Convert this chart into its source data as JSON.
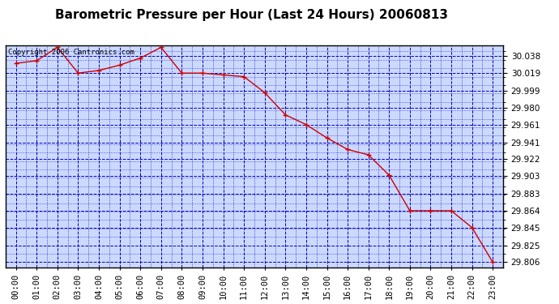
{
  "title": "Barometric Pressure per Hour (Last 24 Hours) 20060813",
  "copyright_text": "Copyright 2006 Cantronics.com",
  "x_labels": [
    "00:00",
    "01:00",
    "02:00",
    "03:00",
    "04:00",
    "05:00",
    "06:00",
    "07:00",
    "08:00",
    "09:00",
    "10:00",
    "11:00",
    "12:00",
    "13:00",
    "14:00",
    "15:00",
    "16:00",
    "17:00",
    "18:00",
    "19:00",
    "20:00",
    "21:00",
    "22:00",
    "23:00"
  ],
  "y_values": [
    30.03,
    30.033,
    30.048,
    30.019,
    30.022,
    30.028,
    30.036,
    30.048,
    30.019,
    30.019,
    30.017,
    30.015,
    29.997,
    29.972,
    29.961,
    29.946,
    29.933,
    29.927,
    29.904,
    29.864,
    29.864,
    29.864,
    29.845,
    29.806
  ],
  "y_ticks": [
    29.806,
    29.825,
    29.845,
    29.864,
    29.883,
    29.903,
    29.922,
    29.941,
    29.961,
    29.98,
    29.999,
    30.019,
    30.038
  ],
  "y_min": 29.8,
  "y_max": 30.05,
  "fig_bg_color": "#ffffff",
  "plot_bg_color": "#ccd9ff",
  "line_color": "#cc0000",
  "marker_color": "#cc0000",
  "grid_color": "#0000bb",
  "title_fontsize": 11,
  "copyright_fontsize": 6.5,
  "tick_fontsize": 7.5,
  "title_bg_color": "#ffffff"
}
